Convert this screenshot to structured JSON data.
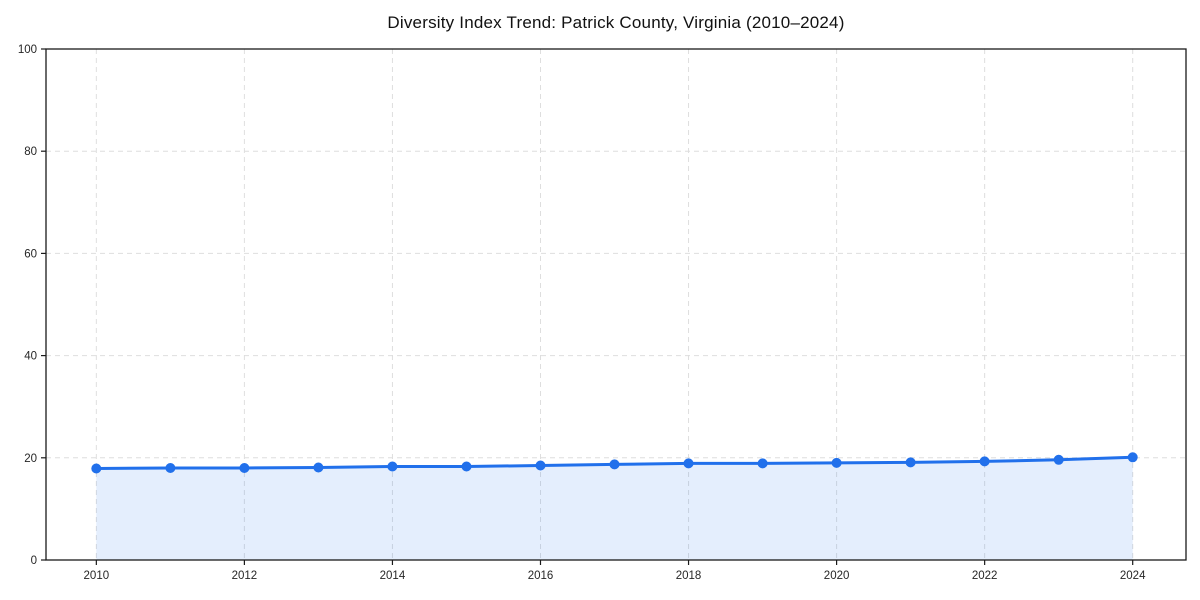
{
  "chart_data": {
    "type": "line",
    "title": "Diversity Index Trend: Patrick County, Virginia (2010–2024)",
    "x": [
      2010,
      2011,
      2012,
      2013,
      2014,
      2015,
      2016,
      2017,
      2018,
      2019,
      2020,
      2021,
      2022,
      2023,
      2024
    ],
    "series": [
      {
        "name": "Diversity Index",
        "values": [
          17.9,
          18.0,
          18.0,
          18.1,
          18.3,
          18.3,
          18.5,
          18.7,
          18.9,
          18.9,
          19.0,
          19.1,
          19.3,
          19.6,
          20.1
        ]
      }
    ],
    "xlabel": "",
    "ylabel": "",
    "xlim": [
      2009.32,
      2024.72
    ],
    "ylim": [
      0,
      100
    ],
    "x_ticks": [
      2010,
      2012,
      2014,
      2016,
      2018,
      2020,
      2022,
      2024
    ],
    "y_ticks": [
      0,
      20,
      40,
      60,
      80,
      100
    ],
    "grid": "dashed",
    "legend": "none",
    "area_fill": true,
    "markers": true,
    "colors": {
      "line": "#2170eb",
      "marker": "#2170eb",
      "area_fill": "rgba(33,112,235,0.12)",
      "gridline": "#dedede",
      "axis_border": "#1a1a1a",
      "tick_label": "#262626",
      "title": "#111111",
      "background": "#ffffff"
    }
  }
}
